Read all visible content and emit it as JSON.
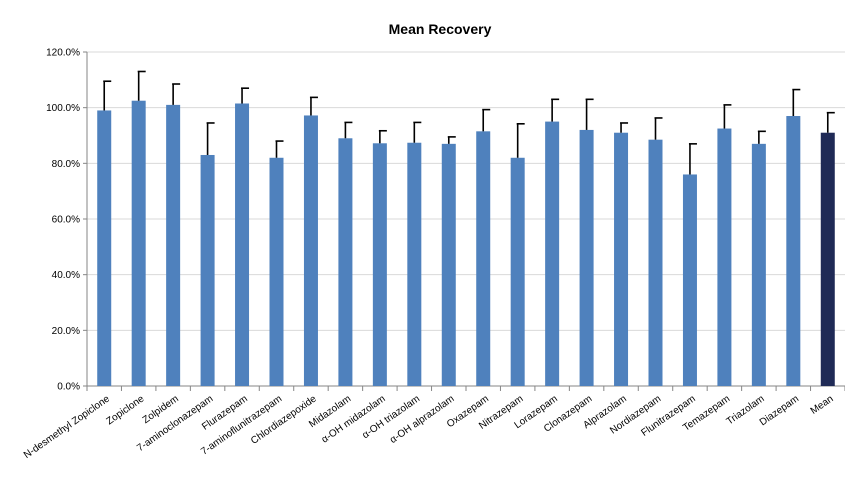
{
  "chart_data": {
    "type": "bar",
    "title": "Mean Recovery",
    "xlabel": "",
    "ylabel": "",
    "ylim": [
      0,
      1.2
    ],
    "y_ticks": [
      0,
      0.2,
      0.4,
      0.6,
      0.8,
      1.0,
      1.2
    ],
    "y_tick_labels": [
      "0.0%",
      "20.0%",
      "40.0%",
      "60.0%",
      "80.0%",
      "100.0%",
      "120.0%"
    ],
    "y_format": "percent",
    "grid": "horizontal",
    "legend": "none",
    "categories": [
      "N-desmethyl Zopiclone",
      "Zopiclone",
      "Zolpidem",
      "7-aminoclonazepam",
      "Flurazepam",
      "7-aminoflunitrazepam",
      "Chlordiazepoxide",
      "Midazolam",
      "α-OH midazolam",
      "α-OH triazolam",
      "α-OH alprazolam",
      "Oxazepam",
      "Nitrazepam",
      "Lorazepam",
      "Clonazepam",
      "Alprazolam",
      "Nordiazepam",
      "Flunitrazepam",
      "Temazepam",
      "Triazolam",
      "Diazepam",
      "Mean"
    ],
    "values": [
      0.99,
      1.025,
      1.01,
      0.83,
      1.015,
      0.82,
      0.972,
      0.89,
      0.872,
      0.874,
      0.87,
      0.915,
      0.82,
      0.95,
      0.92,
      0.91,
      0.885,
      0.76,
      0.925,
      0.87,
      0.97,
      0.91
    ],
    "error_plus": [
      0.105,
      0.105,
      0.075,
      0.115,
      0.055,
      0.06,
      0.065,
      0.057,
      0.045,
      0.073,
      0.025,
      0.078,
      0.122,
      0.08,
      0.11,
      0.035,
      0.078,
      0.11,
      0.085,
      0.045,
      0.095,
      0.072
    ],
    "colors": {
      "bar": "#4f81bd",
      "mean_bar": "#1f2a56",
      "error": "#000000",
      "grid": "#d9d9d9",
      "axis": "#868686"
    }
  }
}
